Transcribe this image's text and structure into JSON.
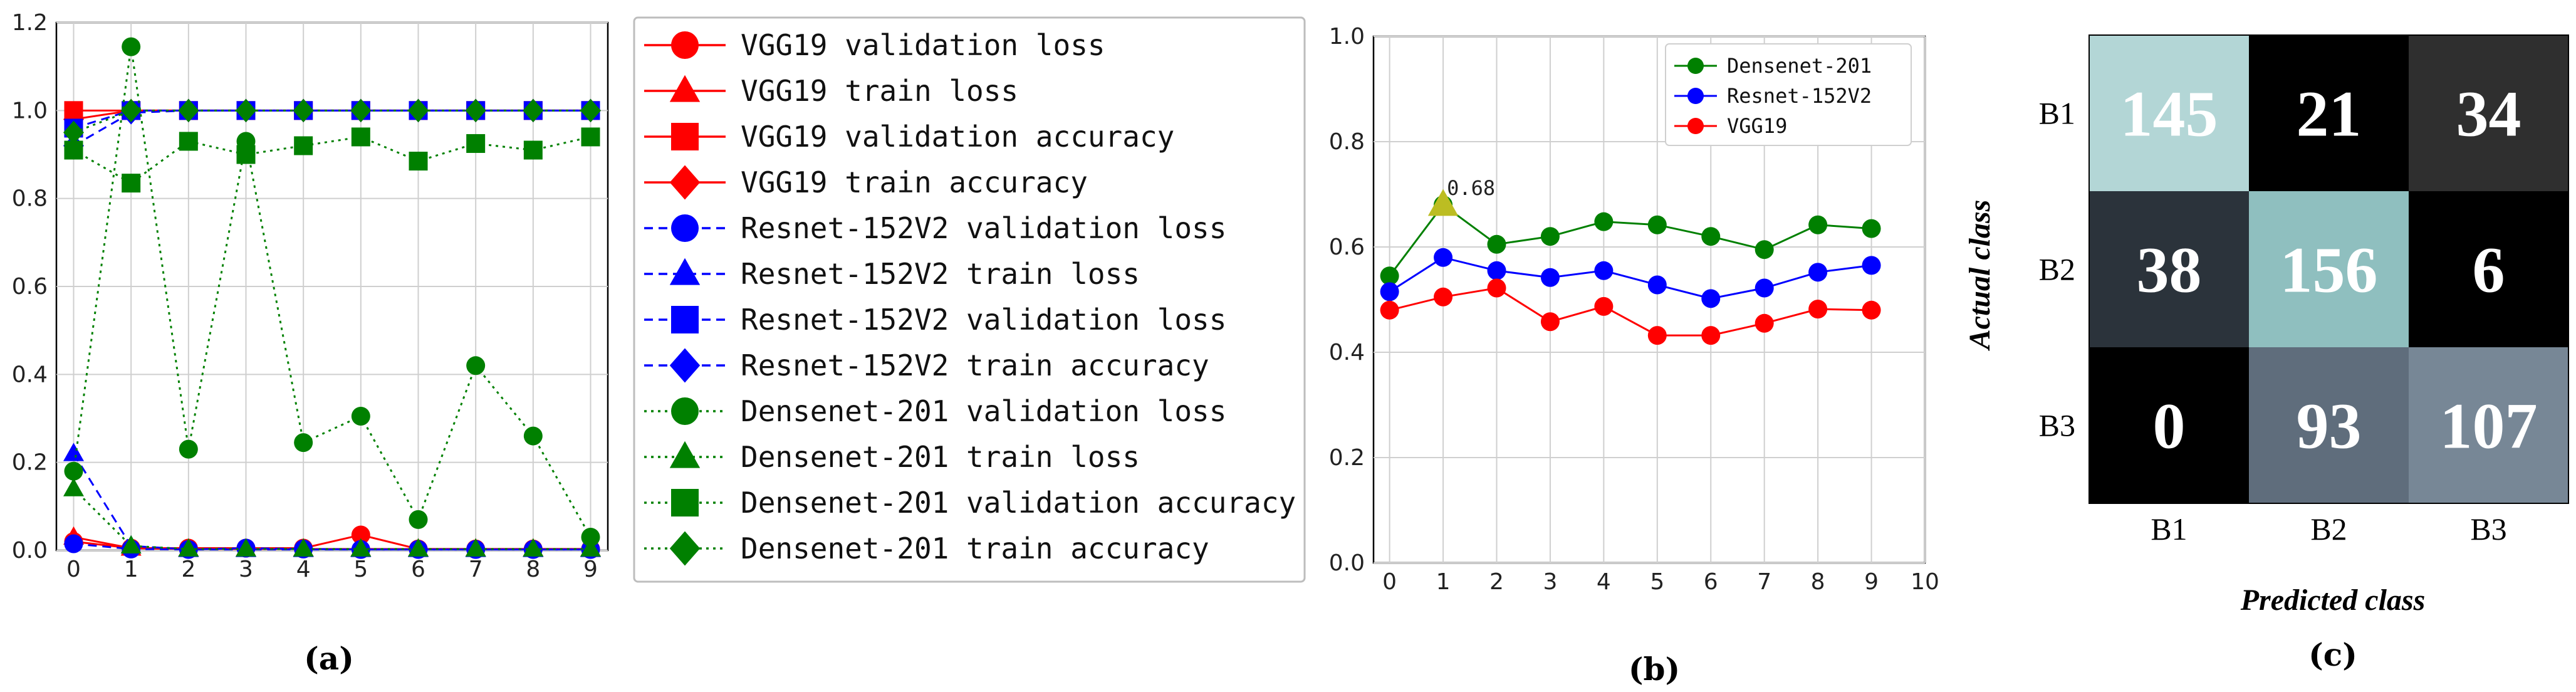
{
  "chart_data": [
    {
      "type": "line",
      "panel_label": "(a)",
      "xlim": [
        -0.3,
        9.3
      ],
      "ylim": [
        0,
        1.2
      ],
      "x_ticks": [
        0,
        1,
        2,
        3,
        4,
        5,
        6,
        7,
        8,
        9
      ],
      "y_ticks": [
        0.0,
        0.2,
        0.4,
        0.6,
        0.8,
        1.0,
        1.2
      ],
      "y_tick_labels": [
        "0.0",
        "0.2",
        "0.4",
        "0.6",
        "0.8",
        "1.0",
        "1.2"
      ],
      "x": [
        0,
        1,
        2,
        3,
        4,
        5,
        6,
        7,
        8,
        9
      ],
      "grid": true,
      "legend_position": "right-outside",
      "series": [
        {
          "name": "VGG19 validation loss",
          "color": "#ff0000",
          "marker": "circle",
          "dash": "solid",
          "values": [
            0.02,
            0.005,
            0.005,
            0.005,
            0.005,
            0.035,
            0.003,
            0.003,
            0.003,
            0.003
          ]
        },
        {
          "name": "VGG19 train loss",
          "color": "#ff0000",
          "marker": "triangle",
          "dash": "solid",
          "values": [
            0.03,
            0.005,
            0.003,
            0.003,
            0.003,
            0.003,
            0.003,
            0.003,
            0.003,
            0.003
          ]
        },
        {
          "name": "VGG19 validation accuracy",
          "color": "#ff0000",
          "marker": "square",
          "dash": "solid",
          "values": [
            1.0,
            1.0,
            1.0,
            1.0,
            1.0,
            1.0,
            1.0,
            1.0,
            1.0,
            1.0
          ]
        },
        {
          "name": "VGG19 train accuracy",
          "color": "#ff0000",
          "marker": "diamond",
          "dash": "solid",
          "values": [
            0.98,
            1.0,
            1.0,
            1.0,
            1.0,
            1.0,
            1.0,
            1.0,
            1.0,
            1.0
          ]
        },
        {
          "name": "Resnet-152V2 validation loss",
          "color": "#0000ff",
          "marker": "circle",
          "dash": "dashed",
          "values": [
            0.015,
            0.003,
            0.002,
            0.005,
            0.003,
            0.002,
            0.002,
            0.002,
            0.002,
            0.002
          ]
        },
        {
          "name": "Resnet-152V2  train loss",
          "color": "#0000ff",
          "marker": "triangle",
          "dash": "dashed",
          "values": [
            0.22,
            0.01,
            0.002,
            0.002,
            0.002,
            0.002,
            0.002,
            0.002,
            0.002,
            0.002
          ]
        },
        {
          "name": "Resnet-152V2 validation loss",
          "color": "#0000ff",
          "marker": "square",
          "dash": "dashed",
          "values": [
            0.96,
            1.0,
            1.0,
            1.0,
            1.0,
            1.0,
            1.0,
            1.0,
            1.0,
            1.0
          ]
        },
        {
          "name": "Resnet-152V2 train accuracy",
          "color": "#0000ff",
          "marker": "diamond",
          "dash": "dashed",
          "values": [
            0.92,
            0.995,
            1.0,
            1.0,
            1.0,
            1.0,
            1.0,
            1.0,
            1.0,
            1.0
          ]
        },
        {
          "name": "Densenet-201 validation loss",
          "color": "#008000",
          "marker": "circle",
          "dash": "dotted",
          "values": [
            0.18,
            1.145,
            0.23,
            0.93,
            0.245,
            0.305,
            0.07,
            0.42,
            0.26,
            0.03
          ]
        },
        {
          "name": "Densenet-201 train loss",
          "color": "#008000",
          "marker": "triangle",
          "dash": "dotted",
          "values": [
            0.14,
            0.01,
            0.003,
            0.003,
            0.003,
            0.003,
            0.003,
            0.003,
            0.003,
            0.003
          ]
        },
        {
          "name": "Densenet-201 validation accuracy",
          "color": "#008000",
          "marker": "square",
          "dash": "dotted",
          "values": [
            0.91,
            0.835,
            0.93,
            0.9,
            0.92,
            0.94,
            0.885,
            0.925,
            0.91,
            0.94
          ]
        },
        {
          "name": "Densenet-201 train accuracy",
          "color": "#008000",
          "marker": "diamond",
          "dash": "dotted",
          "values": [
            0.95,
            1.0,
            1.0,
            1.0,
            1.0,
            1.0,
            1.0,
            1.0,
            1.0,
            1.0
          ]
        }
      ]
    },
    {
      "type": "line",
      "panel_label": "(b)",
      "xlim": [
        -0.3,
        10
      ],
      "ylim": [
        0,
        1.0
      ],
      "x_ticks": [
        0,
        1,
        2,
        3,
        4,
        5,
        6,
        7,
        8,
        9,
        10
      ],
      "y_ticks": [
        0.0,
        0.2,
        0.4,
        0.6,
        0.8,
        1.0
      ],
      "y_tick_labels": [
        "0.0",
        "0.2",
        "0.4",
        "0.6",
        "0.8",
        "1.0"
      ],
      "x": [
        0,
        1,
        2,
        3,
        4,
        5,
        6,
        7,
        8,
        9
      ],
      "grid": true,
      "legend_position": "top-right",
      "annotation": {
        "x": 1,
        "y": 0.68,
        "text": "0.68",
        "marker": "triangle",
        "color": "#bcbd22"
      },
      "series": [
        {
          "name": "Densenet-201",
          "color": "#008000",
          "marker": "circle",
          "values": [
            0.545,
            0.68,
            0.605,
            0.62,
            0.648,
            0.642,
            0.62,
            0.595,
            0.642,
            0.635
          ]
        },
        {
          "name": "Resnet-152V2",
          "color": "#0000ff",
          "marker": "circle",
          "values": [
            0.515,
            0.58,
            0.555,
            0.542,
            0.555,
            0.528,
            0.502,
            0.522,
            0.552,
            0.565
          ]
        },
        {
          "name": "VGG19",
          "color": "#ff0000",
          "marker": "circle",
          "values": [
            0.48,
            0.505,
            0.522,
            0.458,
            0.487,
            0.432,
            0.432,
            0.455,
            0.482,
            0.48
          ]
        }
      ]
    },
    {
      "type": "heatmap",
      "panel_label": "(c)",
      "title": "",
      "xlabel": "Predicted class",
      "ylabel": "Actual class",
      "x_labels": [
        "B1",
        "B2",
        "B3"
      ],
      "y_labels": [
        "B1",
        "B2",
        "B3"
      ],
      "cells": [
        {
          "value": "145",
          "color": "#b3d6d6"
        },
        {
          "value": "21",
          "color": "#000000"
        },
        {
          "value": "34",
          "color": "#2f2f2f"
        },
        {
          "value": "38",
          "color": "#2b333b"
        },
        {
          "value": "156",
          "color": "#8fbfbf"
        },
        {
          "value": "6",
          "color": "#000000"
        },
        {
          "value": "0",
          "color": "#000000"
        },
        {
          "value": "93",
          "color": "#5f6d7c"
        },
        {
          "value": "107",
          "color": "#778796"
        }
      ]
    }
  ]
}
